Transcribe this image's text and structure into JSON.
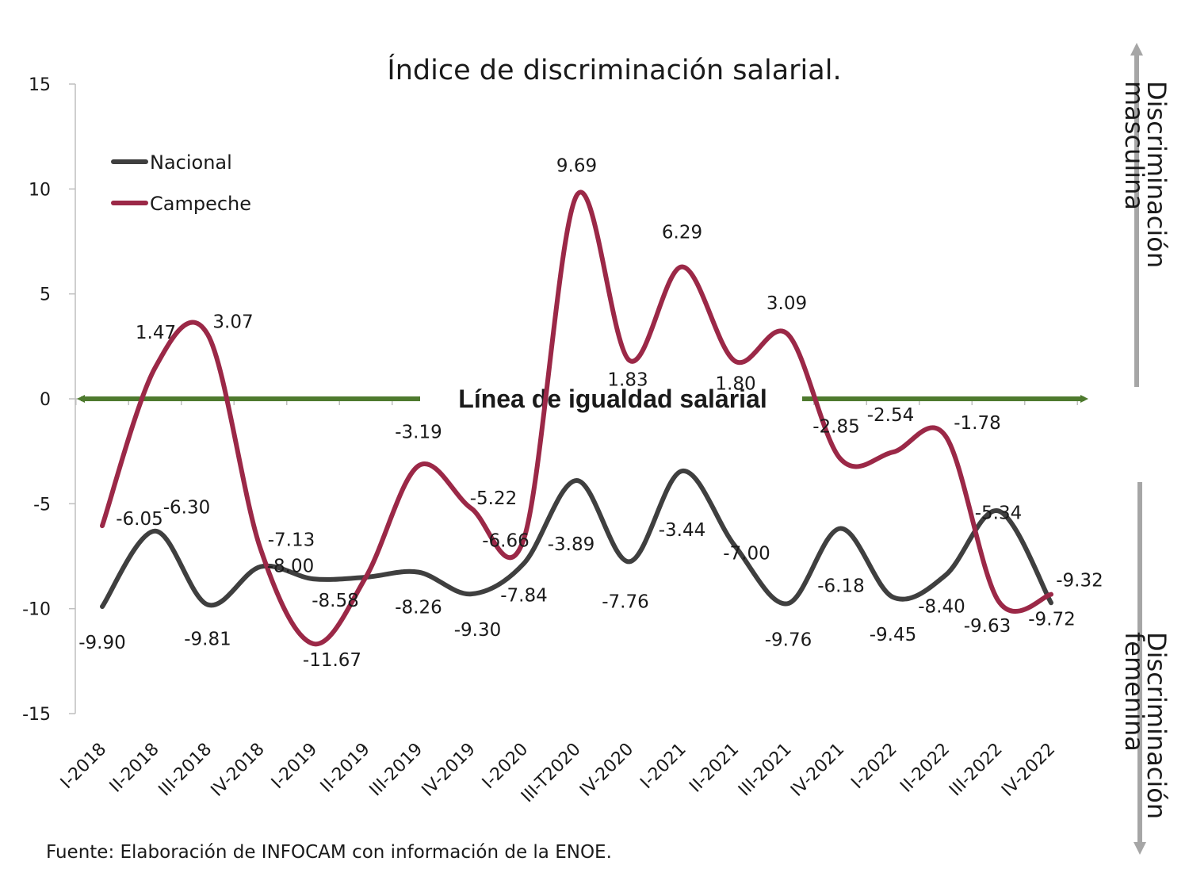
{
  "chart_data": {
    "type": "line",
    "title": "Índice de discriminación salarial.",
    "categories": [
      "I-2018",
      "II-2018",
      "III-2018",
      "IV-2018",
      "I-2019",
      "II-2019",
      "III-2019",
      "IV-2019",
      "I-2020",
      "III-T2020",
      "IV-2020",
      "I-2021",
      "II-2021",
      "III-2021",
      "IV-2021",
      "I-2022",
      "II-2022",
      "III-2022",
      "IV-2022"
    ],
    "ylim": [
      -15,
      15
    ],
    "yticks": [
      "15",
      "10",
      "5",
      "0",
      "-5",
      "-10",
      "-15"
    ],
    "ytick_values": [
      15,
      10,
      5,
      0,
      -5,
      -10,
      -15
    ],
    "series": [
      {
        "name": "Nacional",
        "color": "#3f3f3f",
        "values": [
          -9.9,
          -6.3,
          -9.81,
          -8.0,
          -8.58,
          -8.5,
          -8.26,
          -9.3,
          -7.84,
          -3.89,
          -7.76,
          -3.44,
          -7.0,
          -9.76,
          -6.18,
          -9.45,
          -8.4,
          -5.34,
          -9.72
        ],
        "labels": [
          "-9.90",
          "-6.30",
          "-9.81",
          "-8.00",
          "-8.58",
          "",
          "-8.26",
          "-9.30",
          "-7.84",
          "-3.89",
          "-7.76",
          "-3.44",
          "-7.00",
          "-9.76",
          "-6.18",
          "-9.45",
          "-8.40",
          "-5.34",
          "-9.72"
        ]
      },
      {
        "name": "Campeche",
        "color": "#9b2847",
        "values": [
          -6.05,
          1.47,
          3.07,
          -7.13,
          -11.67,
          -8.5,
          -3.19,
          -5.22,
          -6.66,
          9.69,
          1.83,
          6.29,
          1.8,
          3.09,
          -2.85,
          -2.54,
          -1.78,
          -9.63,
          -9.32
        ],
        "labels": [
          "-6.05",
          "1.47",
          "3.07",
          "-7.13",
          "-11.67",
          "",
          "-3.19",
          "-5.22",
          "-6.66",
          "9.69",
          "1.83",
          "6.29",
          "1.80",
          "3.09",
          "-2.85",
          "-2.54",
          "-1.78",
          "-9.63",
          "-9.32"
        ]
      }
    ],
    "annotations": {
      "equality_line": "Línea de igualdad salarial",
      "upper": "Discriminación masculina",
      "upper_lines": [
        "Discriminación",
        "masculina"
      ],
      "lower": "Discriminación femenina",
      "lower_lines": [
        "Discriminación",
        "femenina"
      ]
    },
    "arrow_color": "#4e7a2e",
    "side_arrow_color": "#a6a6a6"
  },
  "source": "Fuente: Elaboración de INFOCAM con información de la ENOE."
}
